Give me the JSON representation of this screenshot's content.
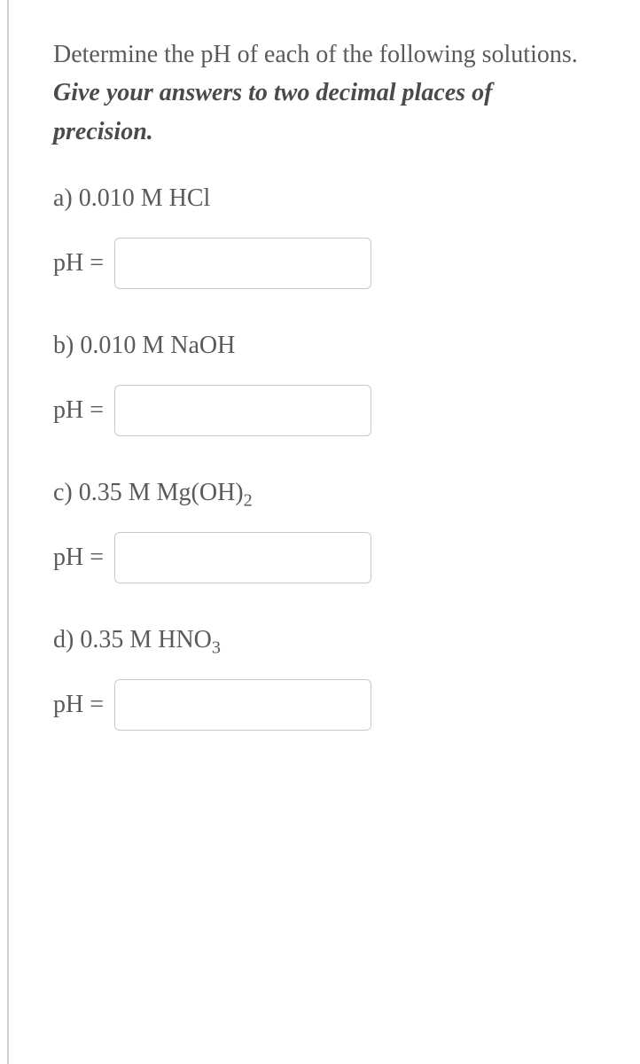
{
  "intro": {
    "lead": "Determine the pH of each of the following solutions. ",
    "emph": "Give your answers to two decimal places of precision."
  },
  "parts": {
    "a": {
      "prefix": "a) 0.010 M HCl",
      "ph_label": "pH =",
      "value": ""
    },
    "b": {
      "prefix": "b) 0.010 M NaOH",
      "ph_label": "pH =",
      "value": ""
    },
    "c": {
      "prefix_pre": "c) 0.35 M Mg(OH)",
      "prefix_sub": "2",
      "ph_label": "pH =",
      "value": ""
    },
    "d": {
      "prefix_pre": "d) 0.35 M HNO",
      "prefix_sub": "3",
      "ph_label": "pH =",
      "value": ""
    }
  },
  "style": {
    "text_color": "#5a5a5a",
    "border_color": "#c8c8c8",
    "left_rule_color": "#d0d0d0",
    "background": "#ffffff",
    "font_size_body": 28,
    "input_width": 290,
    "input_height": 58
  }
}
